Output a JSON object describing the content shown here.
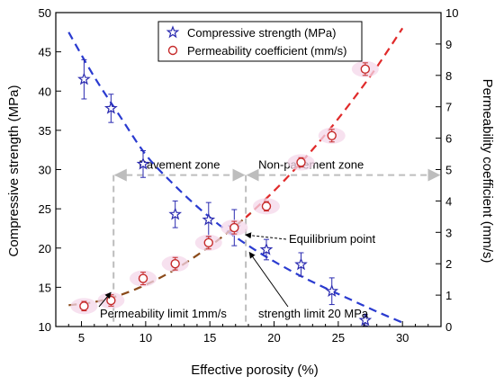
{
  "chart_data": {
    "type": "scatter",
    "xlabel": "Effective porosity (%)",
    "ylabel_left": "Compressive strength (MPa)",
    "ylabel_right": "Permeability coefficient (mm/s)",
    "xlim": [
      3,
      33
    ],
    "xticks": [
      5,
      10,
      15,
      20,
      25,
      30
    ],
    "ylim_left": [
      10,
      50
    ],
    "yticks_left": [
      10,
      15,
      20,
      25,
      30,
      35,
      40,
      45,
      50
    ],
    "ylim_right": [
      0,
      10
    ],
    "yticks_right": [
      0,
      1,
      2,
      3,
      4,
      5,
      6,
      7,
      8,
      9,
      10
    ],
    "legend_position": "top-center",
    "series": [
      {
        "name": "Compressive strength (MPa)",
        "axis": "left",
        "marker": "star",
        "color": "#2a2ab0",
        "points": [
          {
            "x": 5.2,
            "y": 41.5,
            "err": 2.5
          },
          {
            "x": 7.3,
            "y": 37.8,
            "err": 1.8
          },
          {
            "x": 9.8,
            "y": 30.7,
            "err": 1.7
          },
          {
            "x": 12.3,
            "y": 24.3,
            "err": 1.7
          },
          {
            "x": 14.9,
            "y": 23.6,
            "err": 2.2
          },
          {
            "x": 16.9,
            "y": 22.6,
            "err": 2.3
          },
          {
            "x": 19.4,
            "y": 19.8,
            "err": 1.3
          },
          {
            "x": 22.1,
            "y": 17.9,
            "err": 1.5
          },
          {
            "x": 24.5,
            "y": 14.5,
            "err": 1.7
          },
          {
            "x": 27.1,
            "y": 10.8,
            "err": 0.7
          }
        ]
      },
      {
        "name": "Permeability coefficient (mm/s)",
        "axis": "right",
        "marker": "circle",
        "color": "#c62a2a",
        "points": [
          {
            "x": 5.2,
            "y": 0.65,
            "err": 0.15
          },
          {
            "x": 7.3,
            "y": 0.83,
            "err": 0.18
          },
          {
            "x": 9.8,
            "y": 1.53,
            "err": 0.2
          },
          {
            "x": 12.3,
            "y": 2.0,
            "err": 0.2
          },
          {
            "x": 14.9,
            "y": 2.67,
            "err": 0.2
          },
          {
            "x": 16.9,
            "y": 3.15,
            "err": 0.2
          },
          {
            "x": 19.4,
            "y": 3.83,
            "err": 0.15
          },
          {
            "x": 22.1,
            "y": 5.23,
            "err": 0.15
          },
          {
            "x": 24.5,
            "y": 6.08,
            "err": 0.2
          },
          {
            "x": 27.1,
            "y": 8.2,
            "err": 0.2
          }
        ]
      }
    ],
    "fit_curves": [
      {
        "axis": "left",
        "color": "#2a3bd0",
        "style": "dashed",
        "x": [
          4,
          6,
          8,
          10,
          12,
          14,
          16,
          18,
          20,
          22,
          24,
          26,
          28,
          30
        ],
        "y": [
          47.5,
          41.8,
          36.8,
          31.9,
          28.4,
          25.3,
          22.6,
          20.3,
          18.3,
          16.5,
          14.9,
          13.4,
          11.9,
          10.5
        ]
      },
      {
        "axis": "right",
        "color": "#8b4a1a",
        "style": "dashed",
        "x_to": 18,
        "x": [
          4,
          6,
          8,
          10,
          12,
          14,
          16,
          18,
          20,
          22,
          24,
          26,
          28,
          30
        ],
        "y": [
          0.68,
          0.78,
          1.0,
          1.33,
          1.75,
          2.27,
          2.87,
          3.55,
          4.32,
          5.18,
          6.12,
          7.15,
          8.27,
          9.5
        ]
      },
      {
        "axis": "right",
        "color": "#e02a2a",
        "style": "dashed",
        "x_from": 18,
        "x": [
          4,
          6,
          8,
          10,
          12,
          14,
          16,
          18,
          20,
          22,
          24,
          26,
          28,
          30
        ],
        "y": [
          0.68,
          0.78,
          1.0,
          1.33,
          1.75,
          2.27,
          2.87,
          3.55,
          4.32,
          5.18,
          6.12,
          7.15,
          8.27,
          9.5
        ]
      }
    ],
    "zones": {
      "divider_1_x": 7.5,
      "divider_2_x": 17.8,
      "arrow_y_left": 29.3,
      "pavement_label": "Pavement zone",
      "non_pavement_label": "Non-pavement zone"
    },
    "annotations": [
      {
        "text": "Equilibrium point",
        "x": 17.0,
        "y_left": 21.8
      },
      {
        "text": "Permeability limit 1mm/s",
        "x": 7.5,
        "y_left": 14.8
      },
      {
        "text": "strength limit 20 MPa",
        "x": 17.8,
        "y_left": 19.8
      }
    ]
  }
}
